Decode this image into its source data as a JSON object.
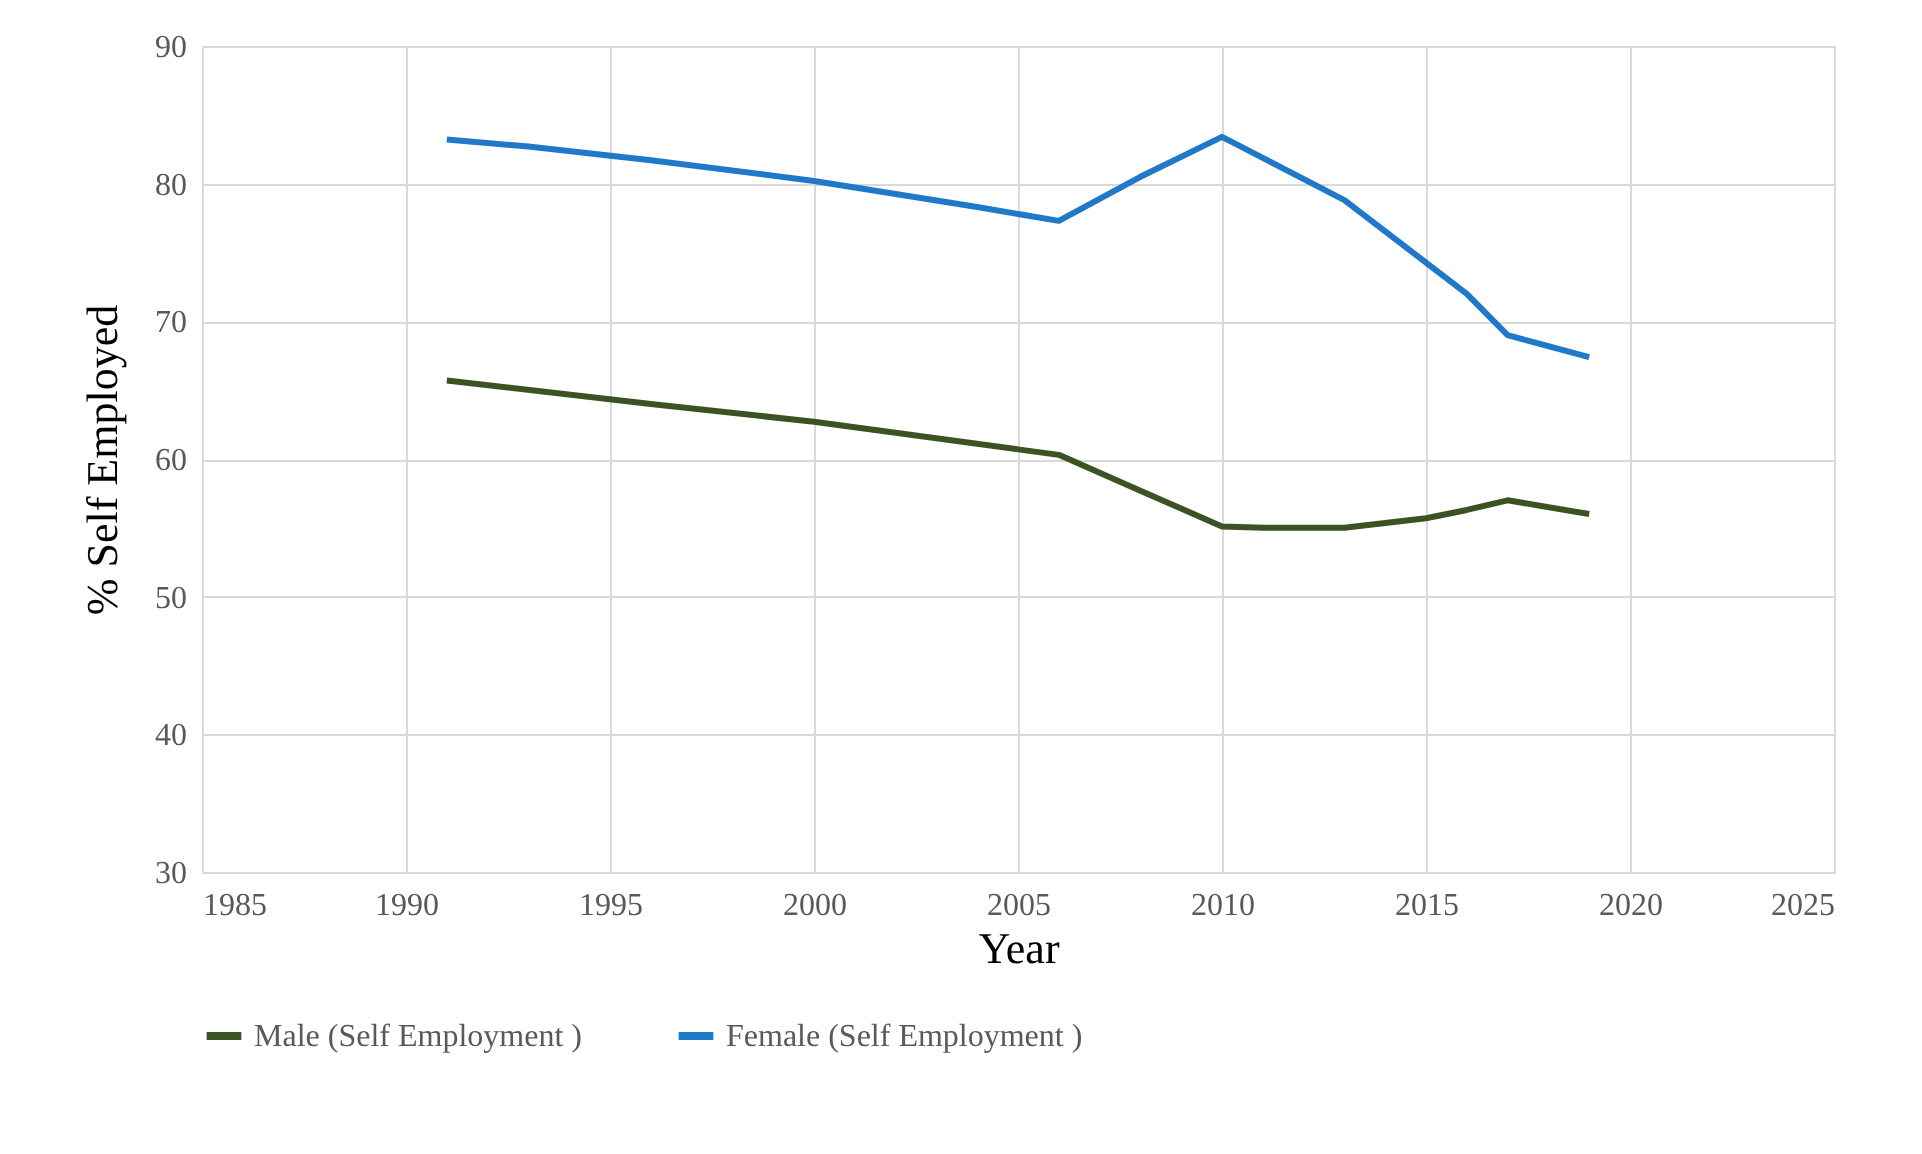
{
  "chart_data": {
    "type": "line",
    "xlabel": "Year",
    "ylabel": "% Self Employed",
    "xlim": [
      1985,
      2025
    ],
    "xticks": [
      1985,
      1990,
      1995,
      2000,
      2005,
      2010,
      2015,
      2020,
      2025
    ],
    "ylim": [
      30,
      90
    ],
    "yticks": [
      30,
      40,
      50,
      60,
      70,
      80,
      90
    ],
    "grid": true,
    "legend": "bottom",
    "marker": "none",
    "line_style": "solid",
    "series": [
      {
        "name": "Male (Self Employment )",
        "color": "#3b5323",
        "x": [
          1991,
          1996,
          2000,
          2005,
          2006,
          2008,
          2010,
          2011,
          2013,
          2015,
          2016,
          2017,
          2019
        ],
        "values": [
          65.7,
          64,
          62.7,
          60.7,
          60.3,
          57.7,
          55.1,
          55,
          55,
          55.7,
          56.3,
          57,
          56
        ]
      },
      {
        "name": "Female (Self Employment )",
        "color": "#1f78c8",
        "x": [
          1991,
          1993,
          1996,
          2000,
          2004,
          2006,
          2008,
          2010,
          2013,
          2016,
          2017,
          2019
        ],
        "values": [
          83.2,
          82.7,
          81.7,
          80.2,
          78.3,
          77.3,
          80.5,
          83.4,
          78.8,
          72,
          69,
          67.4
        ]
      }
    ]
  }
}
